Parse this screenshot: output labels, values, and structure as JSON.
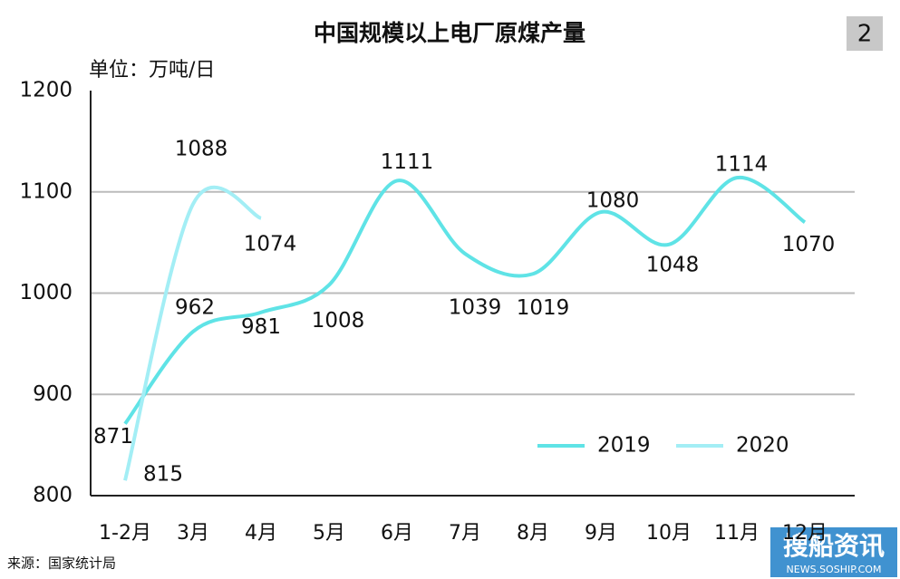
{
  "chart_data": {
    "type": "line",
    "title": "中国规模以上电厂原煤产量",
    "unit_label": "单位：万吨/日",
    "badge": "2",
    "source": "来源：国家统计局",
    "watermark": "搜船资讯",
    "watermark_url": "NEWS.SOSHIP.COM",
    "categories": [
      "1-2月",
      "3月",
      "4月",
      "5月",
      "6月",
      "7月",
      "8月",
      "9月",
      "10月",
      "11月",
      "12月"
    ],
    "series": [
      {
        "name": "2019",
        "color": "#5fe3e6",
        "values": [
          871,
          962,
          981,
          1008,
          1111,
          1039,
          1019,
          1080,
          1048,
          1114,
          1070
        ]
      },
      {
        "name": "2020",
        "color": "#a3eef5",
        "values": [
          815,
          1088,
          1074,
          null,
          null,
          null,
          null,
          null,
          null,
          null,
          null
        ]
      }
    ],
    "ylim": [
      800,
      1200
    ],
    "yticks": [
      800,
      900,
      1000,
      1100,
      1200
    ],
    "grid": true,
    "legend": "lower right"
  }
}
